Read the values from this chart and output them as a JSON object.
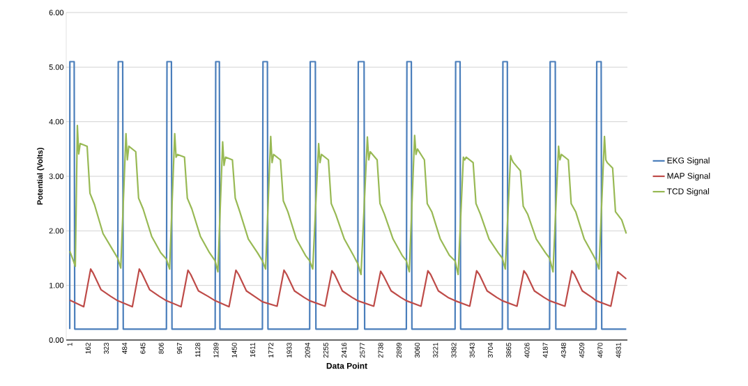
{
  "chart_data": {
    "type": "line",
    "xlabel": "Data Point",
    "ylabel": "Potential (Volts)",
    "xlim": [
      -30,
      4910
    ],
    "ylim": [
      0,
      6
    ],
    "xticks": [
      1,
      162,
      323,
      484,
      645,
      806,
      967,
      1128,
      1289,
      1450,
      1611,
      1772,
      1933,
      2094,
      2255,
      2416,
      2577,
      2738,
      2899,
      3060,
      3221,
      3382,
      3543,
      3704,
      3865,
      4026,
      4187,
      4348,
      4509,
      4670,
      4831
    ],
    "yticks": [
      {
        "value": 0,
        "label": "0.00"
      },
      {
        "value": 1,
        "label": "1.00"
      },
      {
        "value": 2,
        "label": "2.00"
      },
      {
        "value": 3,
        "label": "3.00"
      },
      {
        "value": 4,
        "label": "4.00"
      },
      {
        "value": 5,
        "label": "5.00"
      },
      {
        "value": 6,
        "label": "6.00"
      }
    ],
    "grid": "y",
    "legend": "right",
    "marker": "none",
    "line_style": "solid",
    "series": [
      {
        "name": "EKG Signal",
        "color": "#4a7ebb",
        "x": [
          1,
          2,
          40,
          45,
          423,
          428,
          467,
          472,
          852,
          857,
          896,
          901,
          1281,
          1286,
          1318,
          1323,
          1697,
          1702,
          1741,
          1746,
          2113,
          2118,
          2163,
          2168,
          2536,
          2541,
          2592,
          2597,
          2964,
          2969,
          3008,
          3013,
          3393,
          3398,
          3437,
          3442,
          3809,
          3814,
          3853,
          3858,
          4225,
          4230,
          4275,
          4280,
          4635,
          4640,
          4679,
          4684,
          4900
        ],
        "values": [
          0.2,
          5.1,
          5.1,
          0.2,
          0.2,
          5.1,
          5.1,
          0.2,
          0.2,
          5.1,
          5.1,
          0.2,
          0.2,
          5.1,
          5.1,
          0.2,
          0.2,
          5.1,
          5.1,
          0.2,
          0.2,
          5.1,
          5.1,
          0.2,
          0.2,
          5.1,
          5.1,
          0.2,
          0.2,
          5.1,
          5.1,
          0.2,
          0.2,
          5.1,
          5.1,
          0.2,
          0.2,
          5.1,
          5.1,
          0.2,
          0.2,
          5.1,
          5.1,
          0.2,
          0.2,
          5.1,
          5.1,
          0.2,
          0.2
        ]
      },
      {
        "name": "MAP Signal",
        "color": "#be4b48",
        "x": [
          1,
          124,
          185,
          209,
          277,
          362,
          423,
          552,
          613,
          637,
          705,
          790,
          852,
          981,
          1042,
          1066,
          1134,
          1219,
          1281,
          1403,
          1464,
          1488,
          1556,
          1641,
          1697,
          1826,
          1887,
          1911,
          1979,
          2064,
          2113,
          2248,
          2309,
          2333,
          2401,
          2486,
          2536,
          2677,
          2738,
          2762,
          2830,
          2915,
          2964,
          3093,
          3154,
          3178,
          3246,
          3331,
          3393,
          3522,
          3583,
          3607,
          3675,
          3760,
          3809,
          3938,
          3999,
          4023,
          4091,
          4176,
          4225,
          4360,
          4421,
          4445,
          4513,
          4598,
          4635,
          4764,
          4825,
          4900
        ],
        "values": [
          0.73,
          0.61,
          1.3,
          1.22,
          0.92,
          0.8,
          0.72,
          0.61,
          1.3,
          1.22,
          0.92,
          0.8,
          0.72,
          0.61,
          1.28,
          1.2,
          0.9,
          0.8,
          0.72,
          0.61,
          1.28,
          1.2,
          0.9,
          0.78,
          0.7,
          0.62,
          1.28,
          1.2,
          0.9,
          0.78,
          0.72,
          0.62,
          1.27,
          1.2,
          0.9,
          0.78,
          0.72,
          0.62,
          1.26,
          1.18,
          0.9,
          0.78,
          0.72,
          0.62,
          1.27,
          1.2,
          0.9,
          0.78,
          0.72,
          0.62,
          1.27,
          1.2,
          0.9,
          0.78,
          0.72,
          0.62,
          1.27,
          1.2,
          0.9,
          0.78,
          0.72,
          0.62,
          1.27,
          1.2,
          0.9,
          0.78,
          0.72,
          0.62,
          1.25,
          1.12
        ]
      },
      {
        "name": "TCD Signal",
        "color": "#98b954",
        "x": [
          1,
          30,
          50,
          68,
          80,
          93,
          154,
          179,
          219,
          294,
          374,
          423,
          450,
          496,
          508,
          521,
          582,
          607,
          647,
          722,
          802,
          852,
          880,
          925,
          937,
          950,
          1011,
          1036,
          1076,
          1151,
          1231,
          1281,
          1305,
          1347,
          1359,
          1372,
          1433,
          1458,
          1498,
          1573,
          1653,
          1697,
          1725,
          1770,
          1782,
          1795,
          1856,
          1881,
          1921,
          1996,
          2076,
          2113,
          2140,
          2192,
          2204,
          2217,
          2278,
          2303,
          2343,
          2418,
          2498,
          2536,
          2565,
          2621,
          2633,
          2646,
          2707,
          2732,
          2772,
          2847,
          2927,
          2964,
          2990,
          3037,
          3049,
          3062,
          3123,
          3148,
          3188,
          3263,
          3343,
          3393,
          3420,
          3466,
          3478,
          3491,
          3552,
          3577,
          3617,
          3692,
          3772,
          3809,
          3835,
          3882,
          3894,
          3907,
          3968,
          3993,
          4033,
          4108,
          4188,
          4225,
          4255,
          4304,
          4316,
          4329,
          4390,
          4415,
          4455,
          4530,
          4610,
          4635,
          4660,
          4708,
          4720,
          4733,
          4780,
          4805,
          4860,
          4900
        ],
        "values": [
          1.63,
          1.47,
          1.35,
          3.93,
          3.41,
          3.6,
          3.55,
          2.69,
          2.48,
          1.95,
          1.67,
          1.5,
          1.32,
          3.78,
          3.3,
          3.55,
          3.45,
          2.6,
          2.4,
          1.9,
          1.6,
          1.48,
          1.3,
          3.78,
          3.35,
          3.4,
          3.35,
          2.6,
          2.4,
          1.9,
          1.6,
          1.45,
          1.25,
          3.63,
          3.2,
          3.35,
          3.3,
          2.6,
          2.35,
          1.85,
          1.6,
          1.45,
          1.3,
          3.73,
          3.25,
          3.4,
          3.3,
          2.55,
          2.35,
          1.85,
          1.55,
          1.45,
          1.3,
          3.6,
          3.25,
          3.4,
          3.3,
          2.5,
          2.3,
          1.85,
          1.55,
          1.4,
          1.2,
          3.72,
          3.3,
          3.45,
          3.3,
          2.5,
          2.3,
          1.85,
          1.55,
          1.45,
          1.25,
          3.75,
          3.4,
          3.5,
          3.3,
          2.5,
          2.35,
          1.85,
          1.55,
          1.45,
          1.2,
          3.35,
          3.3,
          3.35,
          3.25,
          2.5,
          2.3,
          1.85,
          1.6,
          1.5,
          1.3,
          3.38,
          3.3,
          3.25,
          3.1,
          2.45,
          2.3,
          1.85,
          1.6,
          1.5,
          1.25,
          3.55,
          3.3,
          3.4,
          3.3,
          2.5,
          2.35,
          1.85,
          1.55,
          1.45,
          1.3,
          3.73,
          3.3,
          3.25,
          3.15,
          2.35,
          2.2,
          1.95
        ]
      }
    ]
  }
}
